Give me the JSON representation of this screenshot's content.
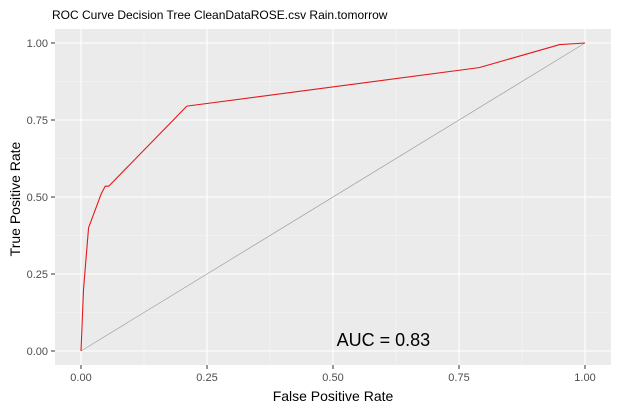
{
  "chart_data": {
    "type": "line",
    "title": "ROC Curve Decision Tree CleanDataROSE.csv Rain.tomorrow",
    "xlabel": "False Positive Rate",
    "ylabel": "True Positive Rate",
    "xlim": [
      0,
      1
    ],
    "ylim": [
      0,
      1
    ],
    "x_ticks": [
      0,
      0.25,
      0.5,
      0.75,
      1
    ],
    "y_ticks": [
      0,
      0.25,
      0.5,
      0.75,
      1
    ],
    "x_tick_labels": [
      "0.00",
      "0.25",
      "0.50",
      "0.75",
      "1.00"
    ],
    "y_tick_labels": [
      "0.00",
      "0.25",
      "0.50",
      "0.75",
      "1.00"
    ],
    "grid": true,
    "series": [
      {
        "color": "#e31a1c",
        "x": [
          0.0,
          0.005,
          0.015,
          0.04,
          0.048,
          0.055,
          0.21,
          0.79,
          0.95,
          1.0
        ],
        "y": [
          0.0,
          0.2,
          0.4,
          0.51,
          0.535,
          0.535,
          0.795,
          0.92,
          0.995,
          1.0
        ]
      },
      {
        "role": "diagonal reference",
        "color": "#a0a0a0",
        "x": [
          0,
          1
        ],
        "y": [
          0,
          1
        ]
      }
    ],
    "annotations": [
      {
        "text": "AUC = 0.83",
        "x": 0.6,
        "y": 0.01
      }
    ],
    "colors": {
      "panel_background": "#ebebeb",
      "grid_major": "#ffffff",
      "grid_minor": "#f5f5f5",
      "tick_text": "#4d4d4d"
    }
  }
}
